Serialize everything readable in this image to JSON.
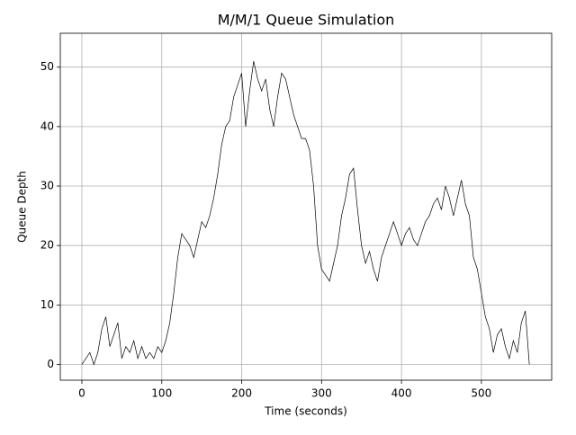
{
  "chart_data": {
    "type": "line",
    "title": "M/M/1 Queue Simulation",
    "xlabel": "Time (seconds)",
    "ylabel": "Queue Depth",
    "x": [
      0,
      5,
      10,
      15,
      20,
      25,
      30,
      35,
      40,
      45,
      50,
      55,
      60,
      65,
      70,
      75,
      80,
      85,
      90,
      95,
      100,
      105,
      110,
      115,
      120,
      125,
      130,
      135,
      140,
      145,
      150,
      155,
      160,
      165,
      170,
      175,
      180,
      185,
      190,
      195,
      200,
      205,
      210,
      215,
      220,
      225,
      230,
      235,
      240,
      245,
      250,
      255,
      260,
      265,
      270,
      275,
      280,
      285,
      290,
      295,
      300,
      305,
      310,
      315,
      320,
      325,
      330,
      335,
      340,
      345,
      350,
      355,
      360,
      365,
      370,
      375,
      380,
      385,
      390,
      395,
      400,
      405,
      410,
      415,
      420,
      425,
      430,
      435,
      440,
      445,
      450,
      455,
      460,
      465,
      470,
      475,
      480,
      485,
      490,
      495,
      500,
      505,
      510,
      515,
      520,
      525,
      530,
      535,
      540,
      545,
      550,
      555,
      560
    ],
    "series": [
      {
        "color": "#000000",
        "values": [
          0,
          1,
          2,
          0,
          2,
          6,
          8,
          3,
          5,
          7,
          1,
          3,
          2,
          4,
          1,
          3,
          1,
          2,
          1,
          3,
          2,
          4,
          7,
          12,
          18,
          22,
          21,
          20,
          18,
          21,
          24,
          23,
          25,
          28,
          32,
          37,
          40,
          41,
          45,
          47,
          49,
          40,
          46,
          51,
          48,
          46,
          48,
          43,
          40,
          45,
          49,
          48,
          45,
          42,
          40,
          38,
          38,
          36,
          30,
          20,
          16,
          15,
          14,
          17,
          20,
          25,
          28,
          32,
          33,
          26,
          20,
          17,
          19,
          16,
          14,
          18,
          20,
          22,
          24,
          22,
          20,
          22,
          23,
          21,
          20,
          22,
          24,
          25,
          27,
          28,
          26,
          30,
          28,
          25,
          28,
          31,
          27,
          25,
          18,
          16,
          12,
          8,
          6,
          2,
          5,
          6,
          3,
          1,
          4,
          2,
          7,
          9,
          0
        ]
      }
    ],
    "xlim": [
      -27,
      588
    ],
    "ylim": [
      -2.65,
      55.7
    ],
    "xticks": [
      0,
      100,
      200,
      300,
      400,
      500
    ],
    "yticks": [
      0,
      10,
      20,
      30,
      40,
      50
    ],
    "grid": true
  }
}
